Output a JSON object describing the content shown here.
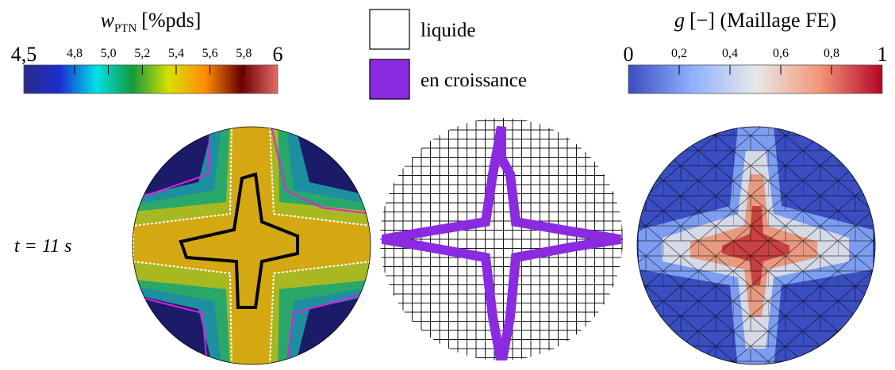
{
  "colorbars": [
    {
      "title_symbol": "w",
      "title_subscript": "PTN",
      "title_unit": "[%pds]",
      "lim": [
        4.5,
        6
      ],
      "ticks": [
        {
          "value": 4.5,
          "label": "4,5"
        },
        {
          "value": 4.8,
          "label": "4,8"
        },
        {
          "value": 5.0,
          "label": "5,0"
        },
        {
          "value": 5.2,
          "label": "5,2"
        },
        {
          "value": 5.4,
          "label": "5,4"
        },
        {
          "value": 5.6,
          "label": "5,6"
        },
        {
          "value": 5.8,
          "label": "5,8"
        },
        6
      ],
      "colors": [
        "#2b2b86",
        "#1b2fd0",
        "#00e0e8",
        "#149a3c",
        "#d8e000",
        "#ff8c00",
        "#6a0000",
        "#e86a6a"
      ]
    },
    {
      "title_symbol": "g",
      "title_unit": "[−] (Maillage FE)",
      "lim": [
        0,
        1
      ],
      "ticks": [
        0,
        {
          "value": 0.2,
          "label": "0,2"
        },
        {
          "value": 0.4,
          "label": "0,4"
        },
        {
          "value": 0.6,
          "label": "0,6"
        },
        {
          "value": 0.8,
          "label": "0,8"
        },
        1
      ],
      "colors": [
        "#3b4cc0",
        "#8db0fe",
        "#e8e8e8",
        "#f4987a",
        "#b40426"
      ]
    }
  ],
  "legend": [
    {
      "label": "liquide",
      "color": "#ffffff"
    },
    {
      "label": "en croissance",
      "color": "#8a2be2"
    }
  ],
  "time_label": "t = 11 s"
}
